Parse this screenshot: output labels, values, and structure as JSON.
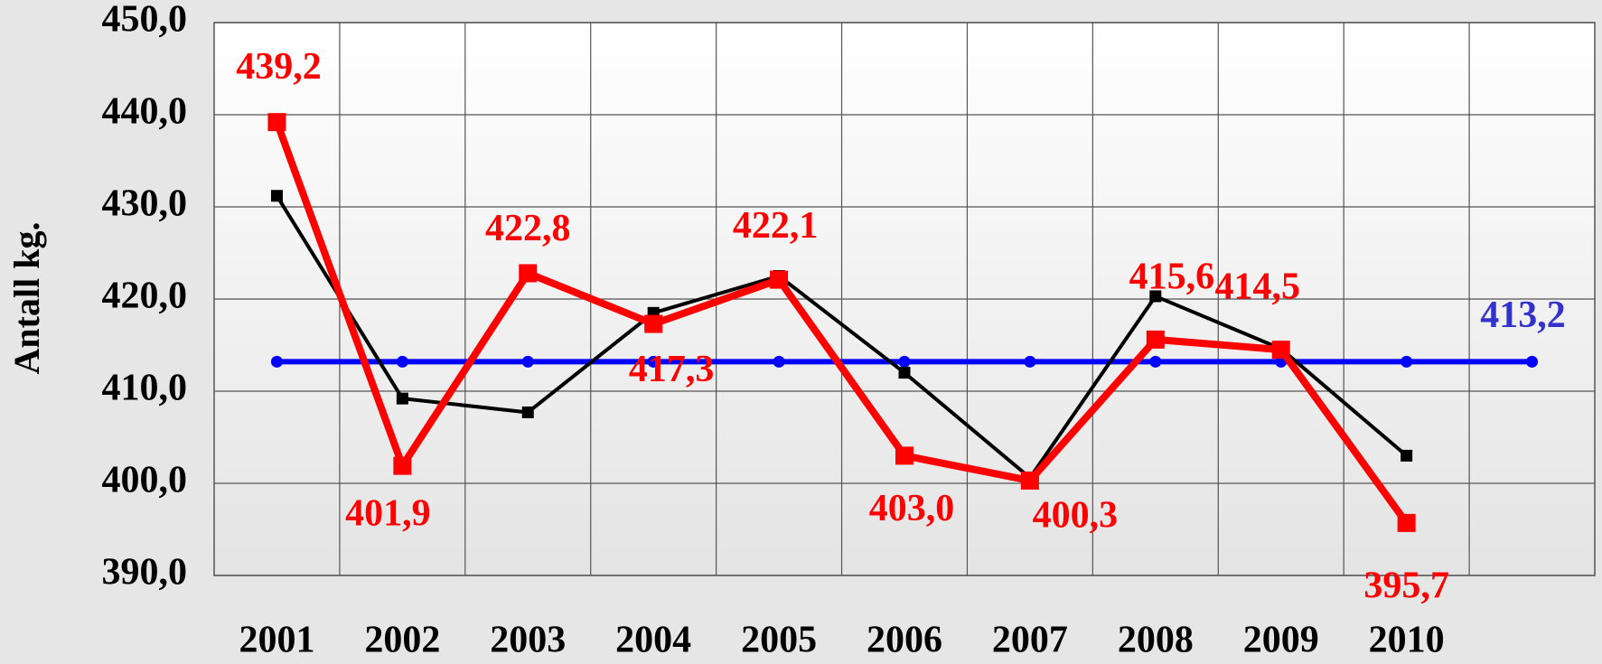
{
  "chart_data": {
    "type": "line",
    "y_label": "Antall kg.",
    "categories": [
      "2001",
      "2002",
      "2003",
      "2004",
      "2005",
      "2006",
      "2007",
      "2008",
      "2009",
      "2010",
      null
    ],
    "series": [
      {
        "name": null,
        "color": "#0000ff",
        "values": [
          413.2,
          413.2,
          413.2,
          413.2,
          413.2,
          413.2,
          413.2,
          413.2,
          413.2,
          413.2,
          413.2
        ],
        "value_labels": [
          null,
          null,
          null,
          null,
          null,
          null,
          null,
          null,
          null,
          null,
          "413,2"
        ],
        "label_color": "#3333cc"
      },
      {
        "name": null,
        "color": "#000000",
        "values": [
          431.2,
          409.2,
          407.7,
          418.5,
          422.5,
          412.0,
          400.6,
          420.3,
          414.6,
          403.0,
          null
        ]
      },
      {
        "name": null,
        "color": "#ff0000",
        "values": [
          439.2,
          401.9,
          422.8,
          417.3,
          422.1,
          403.0,
          400.3,
          415.6,
          414.5,
          395.7,
          null
        ],
        "value_labels": [
          "439,2",
          "401,9",
          "422,8",
          "417,3",
          "422,1",
          "403,0",
          "400,3",
          "415,6",
          "414,5",
          "395,7",
          null
        ],
        "label_color": "#ff0000"
      }
    ],
    "ylim": [
      390,
      450
    ],
    "yticks": [
      {
        "value": 390,
        "label": "390,0"
      },
      {
        "value": 400,
        "label": "400,0"
      },
      {
        "value": 410,
        "label": "410,0"
      },
      {
        "value": 420,
        "label": "420,0"
      },
      {
        "value": 430,
        "label": "430,0"
      },
      {
        "value": 440,
        "label": "440,0"
      },
      {
        "value": 450,
        "label": "450,0"
      }
    ],
    "grid": true
  }
}
